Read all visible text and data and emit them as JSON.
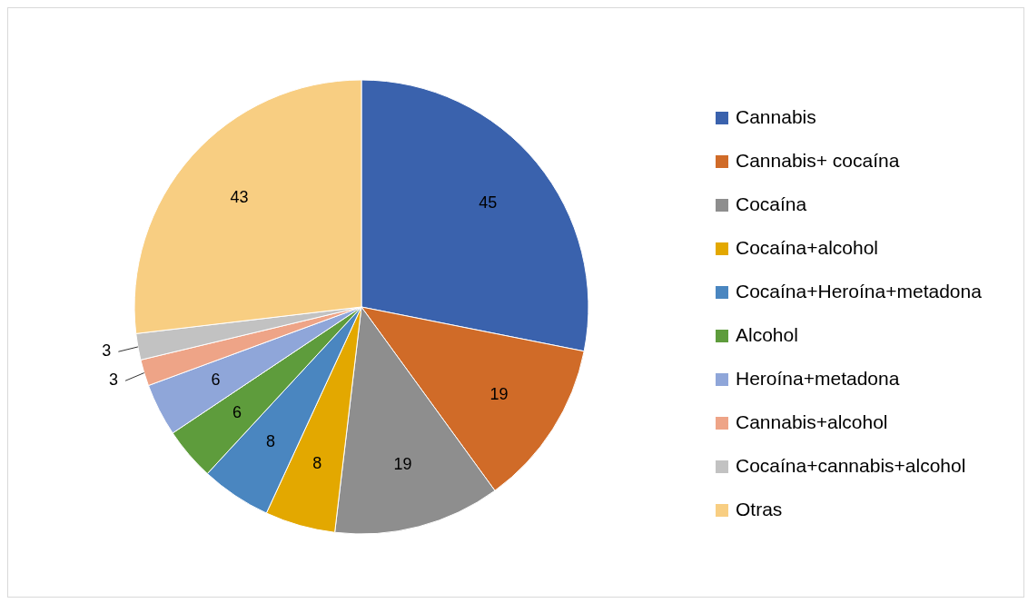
{
  "chart_data": {
    "type": "pie",
    "categories": [
      "Cannabis",
      "Cannabis+ cocaína",
      "Cocaína",
      "Cocaína+alcohol",
      "Cocaína+Heroína+metadona",
      "Alcohol",
      "Heroína+metadona",
      "Cannabis+alcohol",
      "Cocaína+cannabis+alcohol",
      "Otras"
    ],
    "values": [
      45,
      19,
      19,
      8,
      8,
      6,
      6,
      3,
      3,
      43
    ],
    "colors": [
      "#3a62ad",
      "#d06b28",
      "#8e8e8e",
      "#e3a800",
      "#4a86c0",
      "#5e9c3c",
      "#8fa6d9",
      "#eea487",
      "#c2c2c2",
      "#f8ce82"
    ],
    "data_labels": true,
    "legend": "right"
  }
}
